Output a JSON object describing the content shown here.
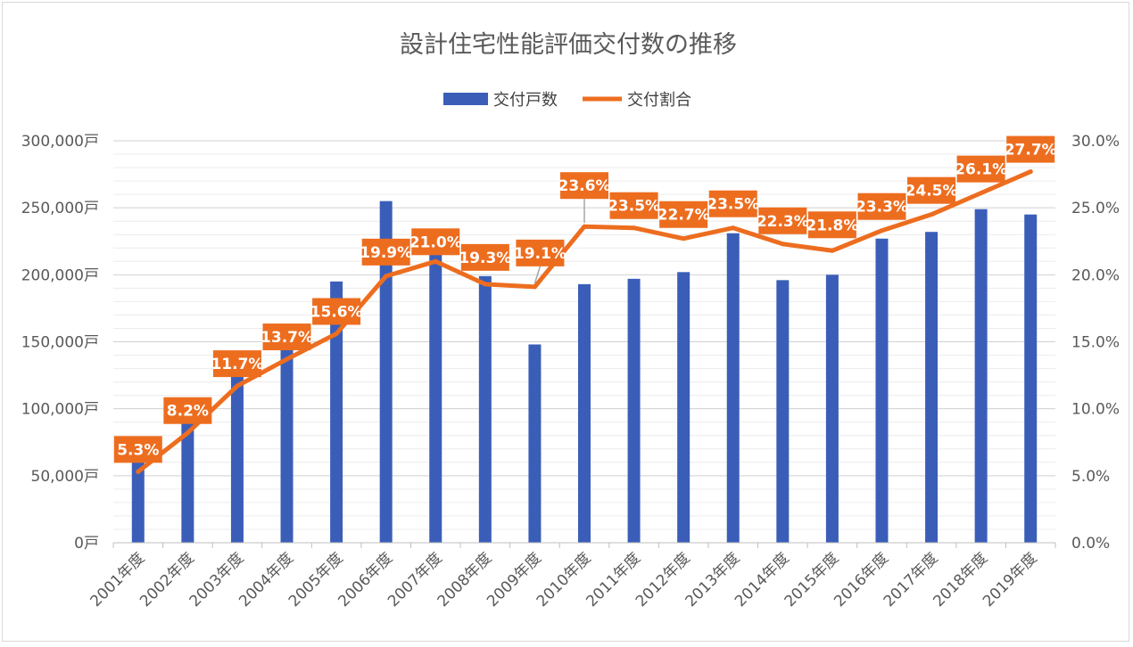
{
  "chart_data": {
    "type": "bar",
    "title": "設計住宅性能評価交付数の推移",
    "categories": [
      "2001年度",
      "2002年度",
      "2003年度",
      "2004年度",
      "2005年度",
      "2006年度",
      "2007年度",
      "2008年度",
      "2009年度",
      "2010年度",
      "2011年度",
      "2012年度",
      "2013年度",
      "2014年度",
      "2015年度",
      "2016年度",
      "2017年度",
      "2018年度",
      "2019年度"
    ],
    "series": [
      {
        "name": "交付戸数",
        "type": "bar",
        "axis": "left",
        "color": "#3a5eb8",
        "values": [
          62000,
          90000,
          126000,
          145000,
          195000,
          255000,
          217000,
          199000,
          148000,
          193000,
          197000,
          202000,
          231000,
          196000,
          200000,
          227000,
          232000,
          249000,
          245000
        ]
      },
      {
        "name": "交付割合",
        "type": "line",
        "axis": "right",
        "color": "#ed6d1f",
        "values": [
          5.3,
          8.2,
          11.7,
          13.7,
          15.6,
          19.9,
          21.0,
          19.3,
          19.1,
          23.6,
          23.5,
          22.7,
          23.5,
          22.3,
          21.8,
          23.3,
          24.5,
          26.1,
          27.7
        ],
        "labels": [
          "5.3%",
          "8.2%",
          "11.7%",
          "13.7%",
          "15.6%",
          "19.9%",
          "21.0%",
          "19.3%",
          "19.1%",
          "23.6%",
          "23.5%",
          "22.7%",
          "23.5%",
          "22.3%",
          "21.8%",
          "23.3%",
          "24.5%",
          "26.1%",
          "27.7%"
        ]
      }
    ],
    "y_left": {
      "range": [
        0,
        300000
      ],
      "ticks": [
        "0戸",
        "50,000戸",
        "100,000戸",
        "150,000戸",
        "200,000戸",
        "250,000戸",
        "300,000戸"
      ]
    },
    "y_right": {
      "range": [
        0,
        30
      ],
      "ticks": [
        "0.0%",
        "5.0%",
        "10.0%",
        "15.0%",
        "20.0%",
        "25.0%",
        "30.0%"
      ]
    },
    "grid": true,
    "legend": "top-center"
  }
}
